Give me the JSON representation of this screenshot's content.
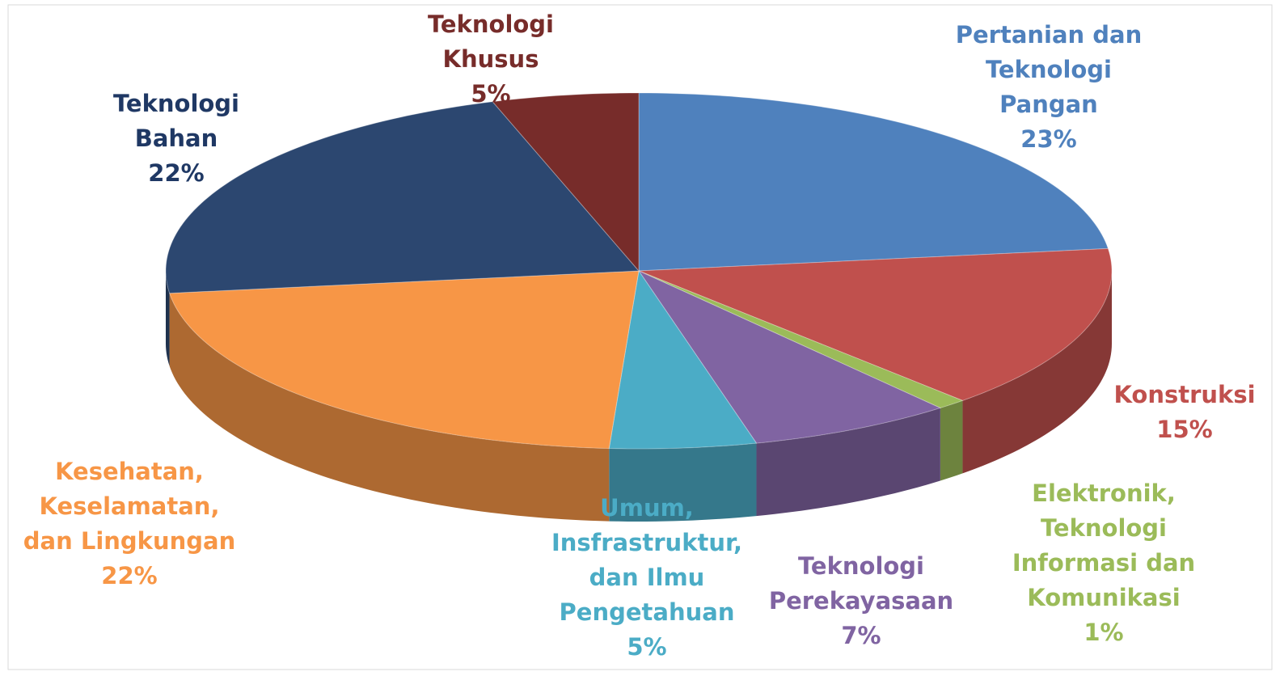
{
  "chart_data": {
    "type": "pie3d",
    "categories": [
      "Pertanian dan\nTeknologi\nPangan",
      "Konstruksi",
      "Elektronik,\nTeknologi\nInformasi dan\nKomunikasi",
      "Teknologi\nPerekayasaan",
      "Umum,\nInsfrastruktur,\ndan Ilmu\nPengetahuan",
      "Kesehatan,\nKeselamatan,\ndan Lingkungan",
      "Teknologi\nBahan",
      "Teknologi\nKhusus"
    ],
    "values": [
      23,
      15,
      1,
      7,
      5,
      22,
      22,
      5
    ],
    "value_labels": [
      "23%",
      "15%",
      "1%",
      "7%",
      "5%",
      "22%",
      "22%",
      "5%"
    ],
    "colors": [
      "#4f81bd",
      "#c0504d",
      "#9bbb59",
      "#8064a2",
      "#4bacc6",
      "#f79646",
      "#2c4770",
      "#772c2a"
    ]
  }
}
